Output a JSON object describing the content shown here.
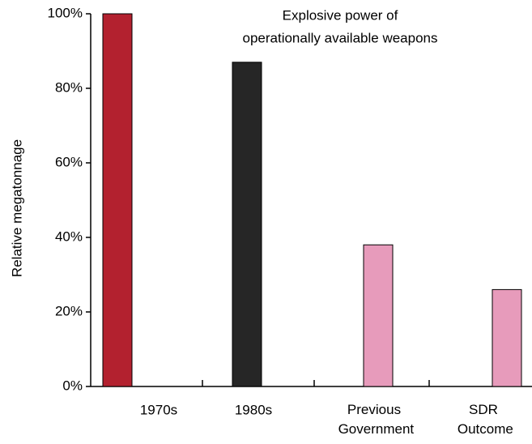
{
  "chart_data": {
    "type": "bar",
    "title": [
      "Explosive power of",
      "operationally available weapons"
    ],
    "y_label": "Relative megatonnage",
    "categories": [
      "1970s",
      "1980s",
      "Previous Government",
      "SDR Outcome"
    ],
    "values": [
      100,
      87,
      38,
      26
    ],
    "colors": [
      "#b3212f",
      "#262626",
      "#e79bbb",
      "#e79bbb"
    ],
    "ylim": [
      0,
      100
    ],
    "yticks": [
      {
        "value": 0,
        "label": "0%"
      },
      {
        "value": 20,
        "label": "20%"
      },
      {
        "value": 40,
        "label": "40%"
      },
      {
        "value": 60,
        "label": "60%"
      },
      {
        "value": 80,
        "label": "80%"
      },
      {
        "value": 100,
        "label": "100%"
      }
    ],
    "grid": false
  }
}
